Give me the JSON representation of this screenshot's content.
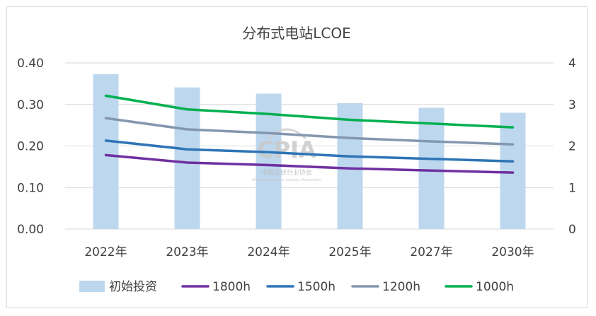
{
  "chart_data": {
    "type": "bar",
    "title": "分布式电站LCOE",
    "categories": [
      "2022年",
      "2023年",
      "2024年",
      "2025年",
      "2027年",
      "2030年"
    ],
    "y_left": {
      "ylim": [
        0,
        0.4
      ],
      "ticks": [
        "0.00",
        "0.10",
        "0.20",
        "0.30",
        "0.40"
      ]
    },
    "y_right": {
      "ylim": [
        0,
        4
      ],
      "ticks": [
        "0",
        "1",
        "2",
        "3",
        "4"
      ]
    },
    "grid": true,
    "legend_position": "bottom",
    "series": [
      {
        "name": "初始投资",
        "type": "bar",
        "axis": "right",
        "color": "#bdd7ee",
        "values": [
          3.73,
          3.41,
          3.26,
          3.03,
          2.92,
          2.8
        ]
      },
      {
        "name": "1800h",
        "type": "line",
        "axis": "left",
        "color": "#7030a0",
        "values": [
          0.178,
          0.16,
          0.154,
          0.146,
          0.141,
          0.136
        ]
      },
      {
        "name": "1500h",
        "type": "line",
        "axis": "left",
        "color": "#2e75b6",
        "values": [
          0.213,
          0.192,
          0.185,
          0.175,
          0.169,
          0.163
        ]
      },
      {
        "name": "1200h",
        "type": "line",
        "axis": "left",
        "color": "#8497b0",
        "values": [
          0.267,
          0.24,
          0.231,
          0.219,
          0.211,
          0.204
        ]
      },
      {
        "name": "1000h",
        "type": "line",
        "axis": "left",
        "color": "#00b050",
        "values": [
          0.321,
          0.288,
          0.277,
          0.263,
          0.254,
          0.245
        ]
      }
    ]
  },
  "watermark": {
    "main": "CPIA",
    "sub": "中国光伏行业协会",
    "tiny": "China Photovoltaic Industry Association"
  }
}
